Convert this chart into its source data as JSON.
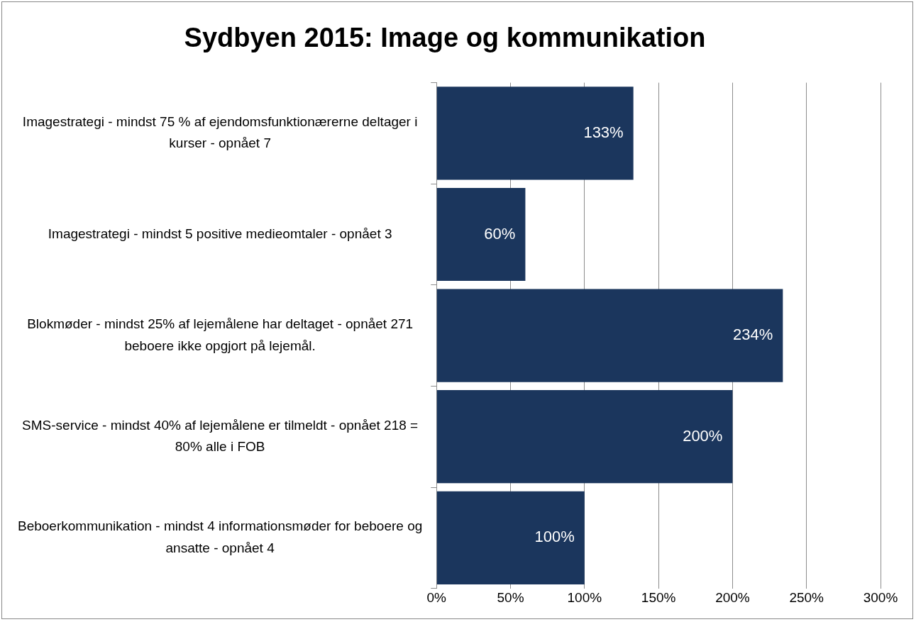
{
  "chart_data": {
    "type": "bar",
    "orientation": "horizontal",
    "title": "Sydbyen 2015: Image og kommunikation",
    "categories": [
      "Imagestrategi - mindst 75 % af ejendomsfunktionærerne deltager i kurser - opnået 7",
      "Imagestrategi - mindst 5 positive medieomtaler - opnået 3",
      "Blokmøder - mindst 25% af lejemålene har deltaget - opnået 271 beboere ikke opgjort på lejemål.",
      "SMS-service - mindst 40% af lejemålene er tilmeldt - opnået 218 = 80% alle i FOB",
      "Beboerkommunikation - mindst 4 informationsmøder for beboere og ansatte - opnået 4"
    ],
    "values": [
      133,
      60,
      234,
      200,
      100
    ],
    "value_labels": [
      "133%",
      "60%",
      "234%",
      "200%",
      "100%"
    ],
    "color": "#1b365d",
    "xlim": [
      0,
      300
    ],
    "xticks": [
      {
        "value": 0,
        "label": "0%"
      },
      {
        "value": 50,
        "label": "50%"
      },
      {
        "value": 100,
        "label": "100%"
      },
      {
        "value": 150,
        "label": "150%"
      },
      {
        "value": 200,
        "label": "200%"
      },
      {
        "value": 250,
        "label": "250%"
      },
      {
        "value": 300,
        "label": "300%"
      }
    ],
    "grid": "x",
    "legend": false
  }
}
